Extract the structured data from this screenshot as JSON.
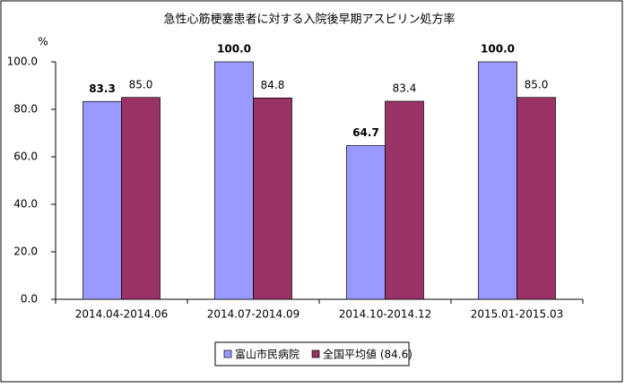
{
  "chart_data": {
    "type": "bar",
    "title": "急性心筋梗塞患者に対する入院後早期アスピリン処方率",
    "y_unit": "%",
    "categories": [
      "2014.04-2014.06",
      "2014.07-2014.09",
      "2014.10-2014.12",
      "2015.01-2015.03"
    ],
    "series": [
      {
        "name": "富山市民病院",
        "color": "#9999ff",
        "values": [
          83.3,
          100,
          64.7,
          100
        ],
        "value_labels": [
          "83.3",
          "100.0",
          "64.7",
          "100.0"
        ]
      },
      {
        "name": "全国平均値 (84.6)",
        "color": "#993366",
        "values": [
          85,
          84.8,
          83.4,
          85
        ],
        "value_labels": [
          "85.0",
          "84.8",
          "83.4",
          "85.0"
        ]
      }
    ],
    "ylim": [
      0,
      100
    ],
    "yticks": [
      {
        "value": 0,
        "label": "0.0"
      },
      {
        "value": 20,
        "label": "20.0"
      },
      {
        "value": 40,
        "label": "40.0"
      },
      {
        "value": 60,
        "label": "60.0"
      },
      {
        "value": 80,
        "label": "80.0"
      },
      {
        "value": 100,
        "label": "100.0"
      }
    ],
    "grid": false
  }
}
